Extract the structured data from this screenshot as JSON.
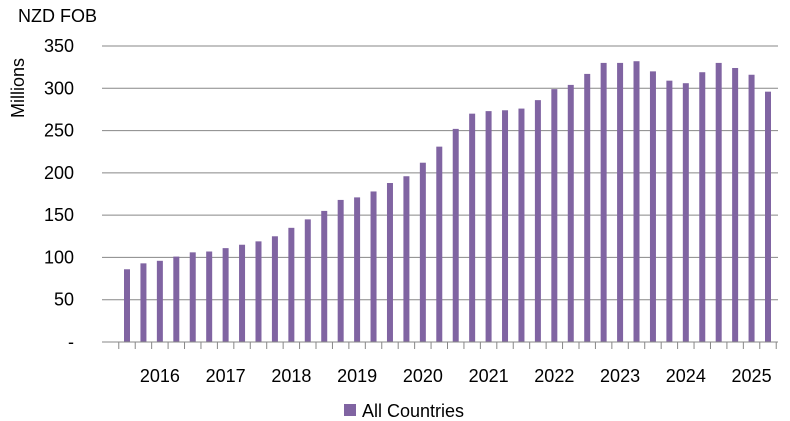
{
  "chart_data": {
    "type": "bar",
    "unit_label": "NZD FOB",
    "ylabel": "Millions",
    "ylim": [
      0,
      350
    ],
    "yticks": [
      0,
      50,
      100,
      150,
      200,
      250,
      300,
      350
    ],
    "ytick_labels": [
      "-",
      "50",
      "100",
      "150",
      "200",
      "250",
      "300",
      "350"
    ],
    "grid": true,
    "year_labels": [
      "2016",
      "2017",
      "2018",
      "2019",
      "2020",
      "2021",
      "2022",
      "2023",
      "2024",
      "2025"
    ],
    "bar_color": "#8064A2",
    "series": [
      {
        "name": "All Countries",
        "values": [
          86,
          93,
          96,
          101,
          106,
          107,
          111,
          115,
          119,
          125,
          135,
          145,
          155,
          168,
          171,
          178,
          188,
          196,
          212,
          231,
          252,
          270,
          273,
          274,
          276,
          286,
          299,
          304,
          317,
          330,
          330,
          332,
          320,
          309,
          306,
          319,
          330,
          324,
          316,
          296
        ]
      }
    ],
    "legend": {
      "position": "bottom-center",
      "label": "All Countries"
    }
  }
}
